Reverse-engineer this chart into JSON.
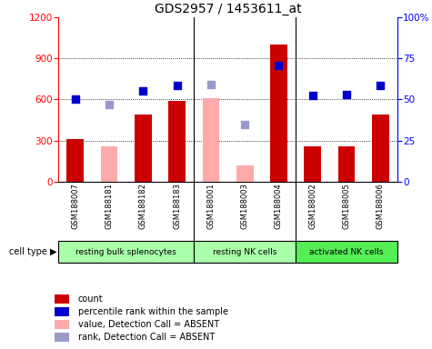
{
  "title": "GDS2957 / 1453611_at",
  "samples": [
    "GSM188007",
    "GSM188181",
    "GSM188182",
    "GSM188183",
    "GSM188001",
    "GSM188003",
    "GSM188004",
    "GSM188002",
    "GSM188005",
    "GSM188006"
  ],
  "groups": [
    {
      "label": "resting bulk splenocytes",
      "color": "#aaffaa",
      "start": 0,
      "end": 4
    },
    {
      "label": "resting NK cells",
      "color": "#aaffaa",
      "start": 4,
      "end": 7
    },
    {
      "label": "activated NK cells",
      "color": "#55ee55",
      "start": 7,
      "end": 10
    }
  ],
  "count": [
    310,
    null,
    490,
    590,
    null,
    null,
    1000,
    260,
    255,
    490
  ],
  "count_absent": [
    null,
    255,
    null,
    null,
    610,
    120,
    null,
    null,
    null,
    null
  ],
  "percentile_left": [
    600,
    null,
    660,
    700,
    null,
    null,
    850,
    630,
    635,
    700
  ],
  "percentile_left_absent": [
    null,
    560,
    null,
    null,
    710,
    420,
    null,
    null,
    null,
    null
  ],
  "ylim_left": [
    0,
    1200
  ],
  "ylim_right": [
    0,
    100
  ],
  "yticks_left": [
    0,
    300,
    600,
    900,
    1200
  ],
  "yticks_right": [
    0,
    25,
    50,
    75,
    100
  ],
  "bar_color": "#cc0000",
  "bar_absent_color": "#ffaaaa",
  "dot_color": "#0000cc",
  "dot_absent_color": "#9999cc",
  "bar_width": 0.5,
  "cell_type_label": "cell type",
  "legend_items": [
    {
      "label": "count",
      "color": "#cc0000"
    },
    {
      "label": "percentile rank within the sample",
      "color": "#0000cc"
    },
    {
      "label": "value, Detection Call = ABSENT",
      "color": "#ffaaaa"
    },
    {
      "label": "rank, Detection Call = ABSENT",
      "color": "#9999cc"
    }
  ]
}
